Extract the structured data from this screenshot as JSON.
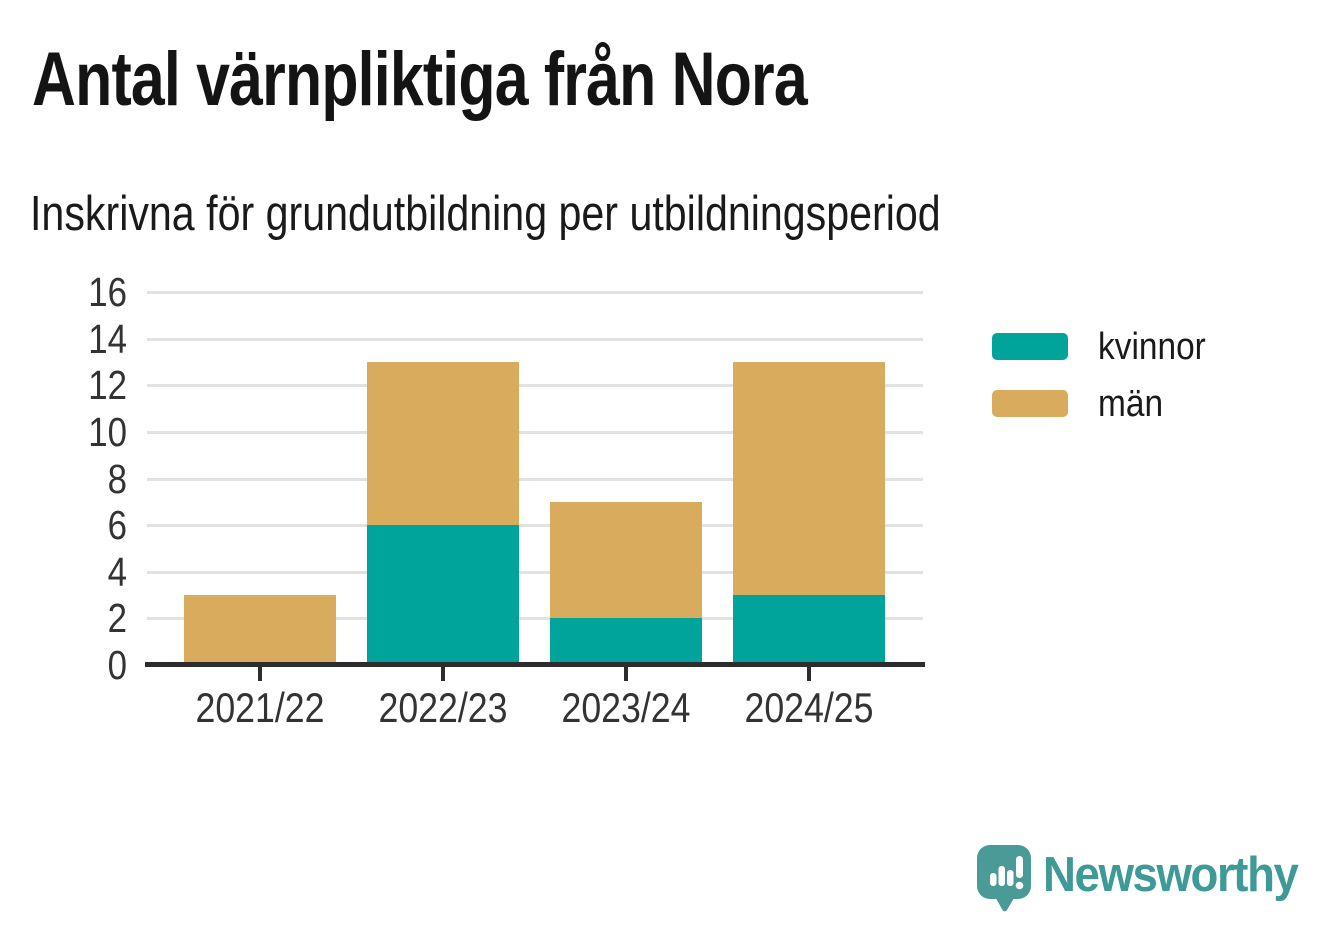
{
  "title": "Antal värnpliktiga från Nora",
  "subtitle": "Inskrivna för grundutbildning per utbildningsperiod",
  "chart_data": {
    "type": "bar",
    "stacked": true,
    "title": "Antal värnpliktiga från Nora",
    "subtitle": "Inskrivna för grundutbildning per utbildningsperiod",
    "xlabel": "",
    "ylabel": "",
    "categories": [
      "2021/22",
      "2022/23",
      "2023/24",
      "2024/25"
    ],
    "series": [
      {
        "name": "kvinnor",
        "color": "#00a49a",
        "values": [
          0,
          6,
          2,
          3
        ]
      },
      {
        "name": "män",
        "color": "#d9ab5c",
        "values": [
          3,
          7,
          5,
          10
        ]
      }
    ],
    "totals": [
      3,
      13,
      7,
      13
    ],
    "ylim": [
      0,
      16
    ],
    "yticks": [
      0,
      2,
      4,
      6,
      8,
      10,
      12,
      14,
      16
    ],
    "grid": true,
    "legend_position": "right",
    "colors": {
      "kvinnor": "#00a49a",
      "man": "#d9ab5c",
      "axis": "#2d2d2d",
      "gridline": "#e2e2e2",
      "tick_text": "#333333"
    }
  },
  "branding": {
    "logo_text": "Newsworthy",
    "logo_color": "#3d9a96",
    "icon_color": "#4a9b98",
    "icon": "newsworthy-speech-bubble-chart-icon"
  }
}
